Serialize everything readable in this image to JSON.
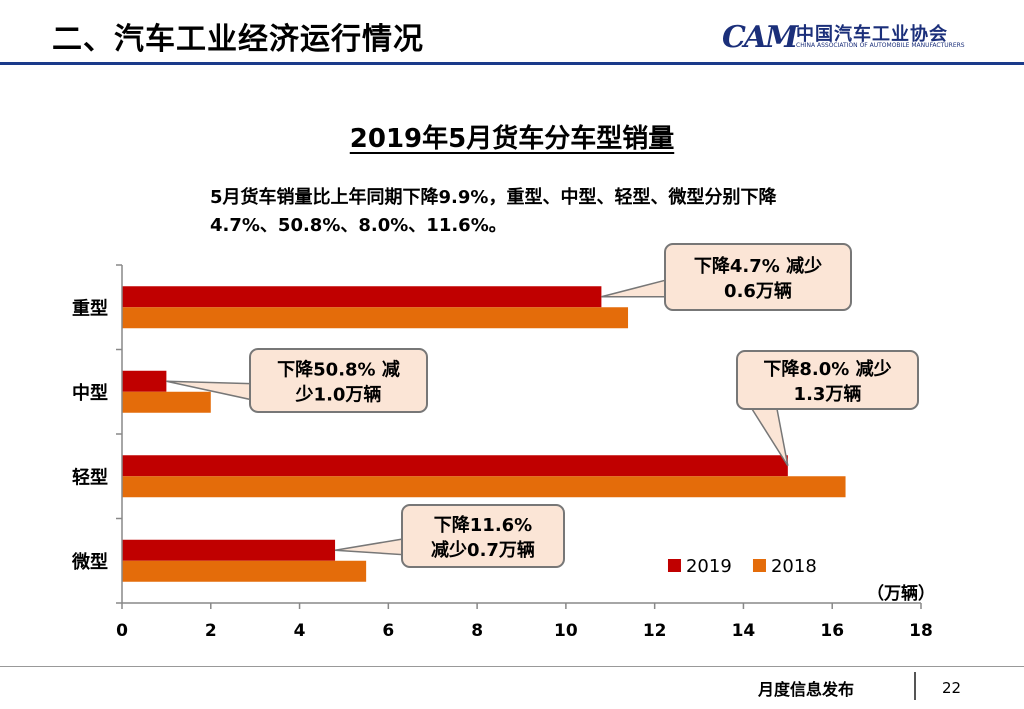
{
  "header": {
    "title": "二、汽车工业经济运行情况",
    "logo_mark": "CAM",
    "logo_cn": "中国汽车工业协会",
    "logo_en": "CHINA ASSOCIATION OF AUTOMOBILE MANUFACTURERS"
  },
  "summary": {
    "line1": "5月货车销量比上年同期下降9.9%，重型、中型、轻型、微型分别下降",
    "line2": "4.7%、50.8%、8.0%、11.6%。"
  },
  "chart_data": {
    "type": "bar",
    "orientation": "horizontal",
    "title": "2019年5月货车分车型销量",
    "categories": [
      "重型",
      "中型",
      "轻型",
      "微型"
    ],
    "series": [
      {
        "name": "2019",
        "color": "#c00000",
        "values": [
          10.8,
          1.0,
          15.0,
          4.8
        ]
      },
      {
        "name": "2018",
        "color": "#e46c0a",
        "values": [
          11.4,
          2.0,
          16.3,
          5.5
        ]
      }
    ],
    "xlim": [
      0,
      18
    ],
    "xticks": [
      "0",
      "2",
      "4",
      "6",
      "8",
      "10",
      "12",
      "14",
      "16",
      "18"
    ],
    "unit_label": "（万辆）",
    "legend_position": "bottom-right",
    "grid": false,
    "annotations": [
      {
        "category": "重型",
        "line1": "下降4.7% 减少",
        "line2": "0.6万辆"
      },
      {
        "category": "中型",
        "line1": "下降50.8% 减",
        "line2": "少1.0万辆"
      },
      {
        "category": "轻型",
        "line1": "下降8.0% 减少",
        "line2": "1.3万辆"
      },
      {
        "category": "微型",
        "line1": "下降11.6%",
        "line2": "减少0.7万辆"
      }
    ]
  },
  "footer": {
    "text": "月度信息发布",
    "page": "22"
  }
}
